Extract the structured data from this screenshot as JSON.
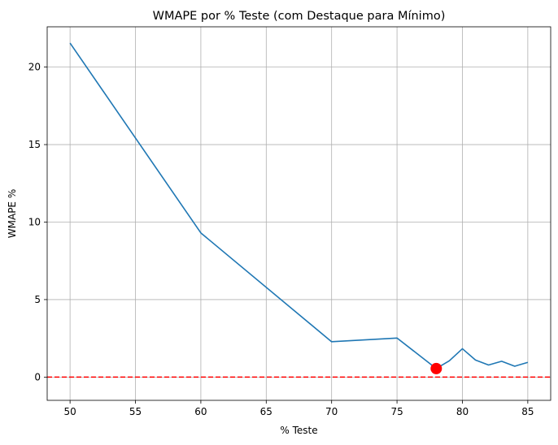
{
  "chart_data": {
    "type": "line",
    "title": "WMAPE por % Teste (com Destaque para Mínimo)",
    "xlabel": "% Teste",
    "ylabel": "WMAPE %",
    "xlim": [
      48.25,
      86.75
    ],
    "ylim": [
      -1.5,
      22.6
    ],
    "xticks": [
      50,
      55,
      60,
      65,
      70,
      75,
      80,
      85
    ],
    "yticks": [
      0,
      5,
      10,
      15,
      20
    ],
    "grid": true,
    "series": [
      {
        "color": "#1f77b4",
        "x": [
          50,
          60,
          70,
          75,
          78,
          79,
          80,
          81,
          82,
          83,
          84,
          85
        ],
        "y": [
          21.55,
          9.3,
          2.28,
          2.52,
          0.55,
          1.05,
          1.83,
          1.1,
          0.78,
          1.02,
          0.7,
          0.95
        ]
      }
    ],
    "highlight": {
      "x": 78,
      "y": 0.55,
      "color": "#ff0000"
    },
    "reference_line": {
      "y": 0,
      "color": "#ff0000",
      "style": "dashed"
    }
  }
}
